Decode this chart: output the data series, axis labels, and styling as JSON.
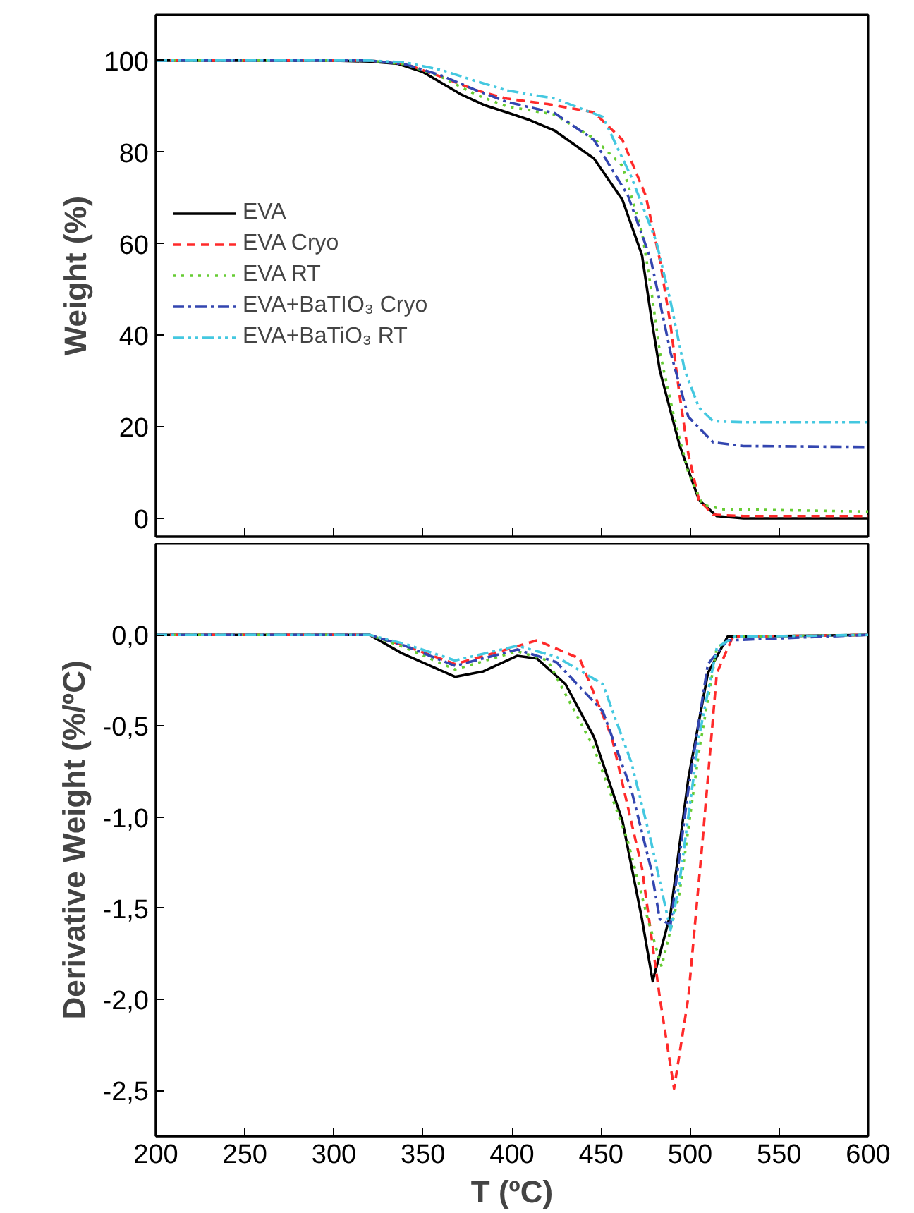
{
  "chart_data": [
    {
      "type": "line",
      "ylabel": "Weight (%)",
      "xlim": [
        200,
        600
      ],
      "xticks": [
        200,
        250,
        300,
        350,
        400,
        450,
        500,
        550,
        600
      ],
      "ylim": [
        -4,
        110
      ],
      "yticks": [
        0,
        20,
        40,
        60,
        80,
        100
      ],
      "tick_labels": "y",
      "grid": false,
      "legend": "left",
      "series": [
        {
          "name": "EVA",
          "color": "#000000",
          "line_style": "solid",
          "x": [
            200,
            300,
            320,
            336,
            350,
            371,
            385,
            397,
            410,
            424,
            446,
            462,
            473,
            478,
            483,
            494,
            505,
            515,
            530,
            600
          ],
          "values": [
            100,
            100,
            99.8,
            99.3,
            97.5,
            92.7,
            90.2,
            88.7,
            87,
            84.7,
            78.6,
            69.6,
            57.5,
            44.4,
            32.3,
            16.1,
            4,
            0.5,
            0,
            0
          ]
        },
        {
          "name": "EVA Cryo",
          "color": "#ff2a2a",
          "line_style": "dashed",
          "x": [
            200,
            320,
            340,
            360,
            380,
            397,
            420,
            446,
            462,
            475,
            483,
            489,
            494,
            499,
            505,
            513,
            530,
            600
          ],
          "values": [
            100,
            100,
            99.3,
            96.5,
            93.5,
            91.7,
            90.5,
            88.7,
            82.7,
            70.6,
            56.5,
            42.3,
            27.2,
            14.1,
            4,
            0.8,
            0.5,
            0.5
          ]
        },
        {
          "name": "EVA RT",
          "color": "#66cc33",
          "line_style": "dotted",
          "x": [
            200,
            320,
            340,
            360,
            380,
            397,
            424,
            446,
            462,
            473,
            478,
            483,
            491,
            499,
            507,
            518,
            600
          ],
          "values": [
            100,
            100,
            99.2,
            96.5,
            92.5,
            90,
            88.2,
            83,
            77,
            62.5,
            50.4,
            36.3,
            22.2,
            10,
            3,
            2,
            1.5
          ]
        },
        {
          "name": "EVA+BaTIO₃ Cryo",
          "color": "#3346b0",
          "line_style": "dashdot",
          "x": [
            200,
            320,
            340,
            360,
            380,
            397,
            424,
            446,
            465,
            478,
            489,
            499,
            513,
            530,
            600
          ],
          "values": [
            100,
            100,
            99.2,
            96.8,
            93.5,
            91,
            88.5,
            82.7,
            70.6,
            56.5,
            36.3,
            22.2,
            16.6,
            15.8,
            15.6
          ]
        },
        {
          "name": "EVA+BaTiO₃ RT",
          "color": "#44c8e0",
          "line_style": "dashdotdot",
          "x": [
            200,
            320,
            340,
            360,
            380,
            397,
            424,
            451,
            467,
            481,
            489,
            497,
            505,
            513,
            530,
            600
          ],
          "values": [
            100,
            100,
            99.6,
            98,
            95.5,
            93.5,
            91.7,
            87.7,
            74.6,
            60.5,
            47.4,
            32.3,
            24.2,
            21.2,
            21,
            21
          ]
        }
      ]
    },
    {
      "type": "line",
      "xlabel": "T (ºC)",
      "ylabel": "Derivative Weight (%/ºC)",
      "xlim": [
        200,
        600
      ],
      "xticks": [
        200,
        250,
        300,
        350,
        400,
        450,
        500,
        550,
        600
      ],
      "ylim": [
        -2.75,
        0.5
      ],
      "yticks": [
        {
          "value": 0,
          "label": "0,0"
        },
        {
          "value": -0.5,
          "label": "-0,5"
        },
        {
          "value": -1,
          "label": "-1,0"
        },
        {
          "value": -1.5,
          "label": "-1,5"
        },
        {
          "value": -2,
          "label": "-2,0"
        },
        {
          "value": -2.5,
          "label": "-2,5"
        }
      ],
      "grid": false,
      "legend": false,
      "series": [
        {
          "color": "#000000",
          "line_style": "solid",
          "x": [
            200,
            320,
            338,
            368,
            384,
            403,
            414,
            430,
            446,
            462,
            473,
            479,
            489,
            499,
            510,
            521,
            600
          ],
          "values": [
            0,
            0,
            -0.1,
            -0.23,
            -0.2,
            -0.115,
            -0.13,
            -0.27,
            -0.56,
            -1.02,
            -1.56,
            -1.9,
            -1.53,
            -0.79,
            -0.21,
            -0.01,
            0
          ]
        },
        {
          "color": "#ff2a2a",
          "line_style": "dashed",
          "x": [
            200,
            320,
            340,
            368,
            390,
            414,
            438,
            456,
            473,
            483,
            491,
            499,
            507,
            515,
            524,
            600
          ],
          "values": [
            0,
            0,
            -0.06,
            -0.16,
            -0.1,
            -0.03,
            -0.13,
            -0.56,
            -1.28,
            -1.99,
            -2.49,
            -1.99,
            -1.13,
            -0.21,
            -0.01,
            0
          ]
        },
        {
          "color": "#66cc33",
          "line_style": "dotted",
          "x": [
            200,
            320,
            340,
            368,
            403,
            420,
            446,
            465,
            476,
            484,
            494,
            505,
            515,
            525,
            600
          ],
          "values": [
            0,
            0,
            -0.07,
            -0.19,
            -0.09,
            -0.14,
            -0.62,
            -1.13,
            -1.55,
            -1.82,
            -1.42,
            -0.64,
            -0.07,
            -0.01,
            0
          ]
        },
        {
          "color": "#3346b0",
          "line_style": "dashdot",
          "x": [
            200,
            320,
            340,
            368,
            403,
            425,
            451,
            467,
            478,
            483,
            489,
            499,
            510,
            521,
            600
          ],
          "values": [
            0,
            0,
            -0.06,
            -0.17,
            -0.08,
            -0.15,
            -0.42,
            -0.85,
            -1.28,
            -1.56,
            -1.59,
            -0.85,
            -0.16,
            -0.03,
            0
          ]
        },
        {
          "color": "#44c8e0",
          "line_style": "dashdotdot",
          "x": [
            200,
            320,
            340,
            368,
            403,
            425,
            451,
            467,
            478,
            489,
            494,
            505,
            515,
            525,
            600
          ],
          "values": [
            0,
            0,
            -0.05,
            -0.14,
            -0.06,
            -0.12,
            -0.27,
            -0.7,
            -1.13,
            -1.62,
            -1.36,
            -0.56,
            -0.07,
            -0.01,
            0
          ]
        }
      ]
    }
  ]
}
